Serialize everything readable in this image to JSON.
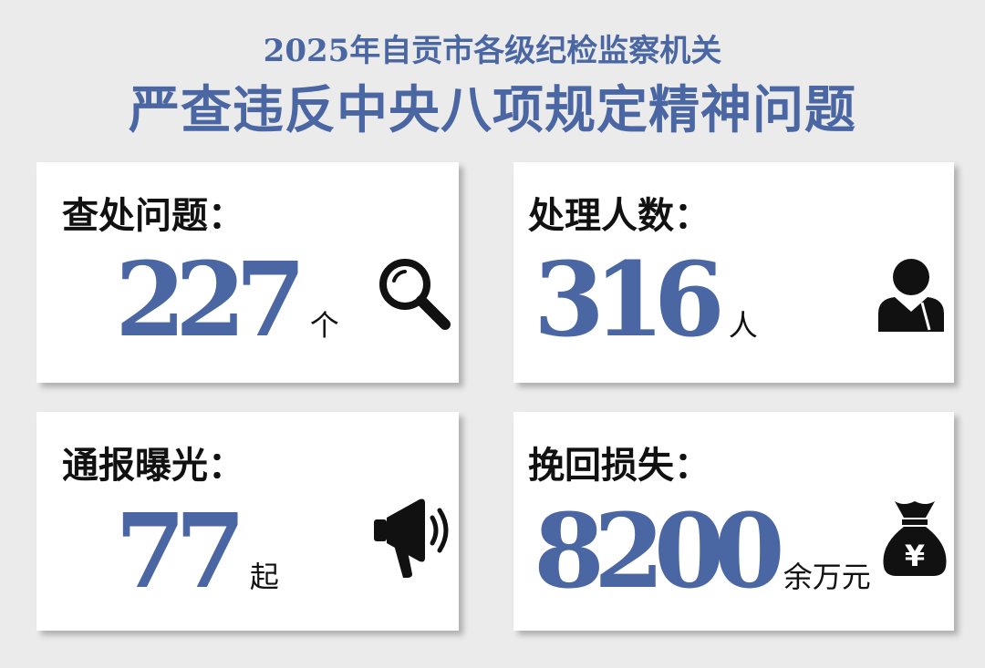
{
  "header": {
    "line1": "2025年自贡市各级纪检监察机关",
    "line2": "严查违反中央八项规定精神问题"
  },
  "accent": "#4a67a3",
  "cards": [
    {
      "label": "查处问题：",
      "value": "227",
      "unit": "个",
      "icon": "magnifier-icon"
    },
    {
      "label": "处理人数：",
      "value": "316",
      "unit": "人",
      "icon": "person-icon"
    },
    {
      "label": "通报曝光：",
      "value": "77",
      "unit": "起",
      "icon": "megaphone-icon"
    },
    {
      "label": "挽回损失：",
      "value": "8200",
      "unit": "余万元",
      "icon": "money-bag-icon",
      "icon_text": "¥"
    }
  ]
}
